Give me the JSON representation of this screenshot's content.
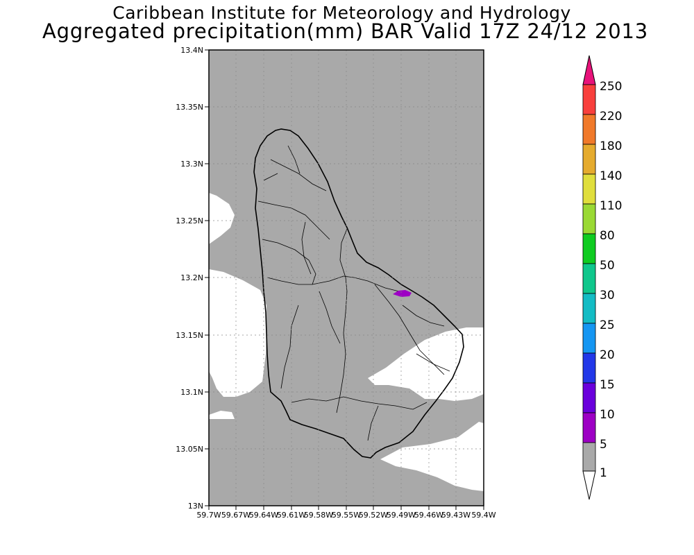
{
  "header": {
    "title_line1": "Caribbean Institute for Meteorology and Hydrology",
    "title_line2": "Aggregated precipitation(mm) BAR Valid 17Z 24/12 2013"
  },
  "map": {
    "lat_ticks": [
      "13.4N",
      "13.35N",
      "13.3N",
      "13.25N",
      "13.2N",
      "13.15N",
      "13.1N",
      "13.05N",
      "13N"
    ],
    "lon_ticks": [
      "59.7W",
      "59.67W",
      "59.64W",
      "59.61W",
      "59.58W",
      "59.55W",
      "59.52W",
      "59.49W",
      "59.46W",
      "59.43W",
      "59.4W"
    ],
    "background_color": "#a9a9a9",
    "land_region": "Barbados"
  },
  "colorbar": {
    "labels": [
      "1",
      "5",
      "10",
      "15",
      "20",
      "25",
      "30",
      "50",
      "80",
      "110",
      "140",
      "180",
      "220",
      "250"
    ],
    "colors": [
      "#ffffff",
      "#a9a9a9",
      "#9d00c4",
      "#6a00dc",
      "#2238e8",
      "#1596f2",
      "#13bcc4",
      "#0fc78c",
      "#0fcc21",
      "#9ad934",
      "#e0de3c",
      "#e5ab2e",
      "#f0792a",
      "#f83f3c",
      "#e8127a"
    ]
  }
}
